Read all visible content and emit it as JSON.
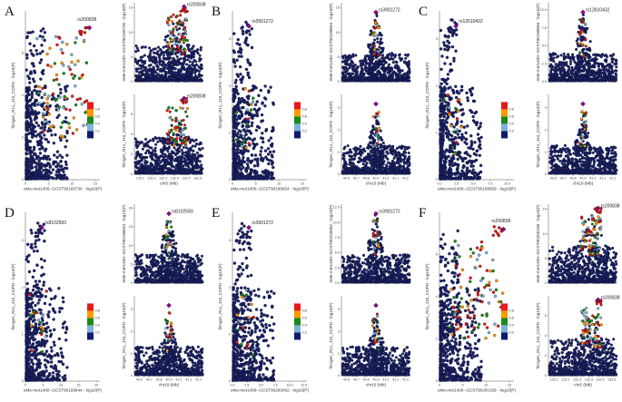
{
  "figure": {
    "legend": {
      "ticks": [
        "0.8",
        "0.6",
        "0.4",
        "0.2"
      ],
      "colors": [
        "#e41a1c",
        "#ff9900",
        "#1a8a1a",
        "#7fb2d8",
        "#101a6e"
      ]
    },
    "colors": {
      "point_default": "#1c2470",
      "point_edge": "#000000",
      "lead": "#8b0a8b",
      "high": "#e41a1c",
      "mid": "#ff9900",
      "green": "#1a8a1a",
      "light": "#7fb2d8"
    }
  },
  "chart_data": [
    {
      "panel": "A",
      "type": "scatter",
      "lead_snp": "rs200838",
      "scatter": {
        "xlabel": "eMe-met1400--GCST90199730 - log10(P)",
        "ylabel": "finngen_R11_J10_COPD - log10(P)",
        "xticks": [
          "0",
          "5",
          "10",
          "15"
        ],
        "yticks": [
          "0",
          "2",
          "4",
          "6"
        ],
        "xlim": [
          0,
          16
        ],
        "ylim": [
          0,
          8
        ]
      },
      "top": {
        "ylabel": "eMe-met1400--GCST90199730 - log10(P)",
        "yticks": [
          "0",
          "5",
          "10",
          "15"
        ],
        "ylim": [
          0,
          16
        ]
      },
      "bottom": {
        "xlabel": "chr5 (Mb)",
        "ylabel": "finngen_R11_J10_COPD - log10(P)",
        "xticks": [
          "132.1",
          "132.2",
          "132.3",
          "132.4",
          "132.5",
          "132.6"
        ],
        "yticks": [
          "0",
          "2",
          "4",
          "6"
        ],
        "ylim": [
          0,
          8
        ]
      }
    },
    {
      "panel": "B",
      "type": "scatter",
      "lead_snp": "rs3901272",
      "scatter": {
        "xlabel": "eMe-met1400--GCST90199654 - log10(P)",
        "ylabel": "finngen_R11_J10_COPD - log10(P)",
        "xticks": [
          "0",
          "5",
          "10",
          "15"
        ],
        "yticks": [
          "0",
          "1",
          "2",
          "3"
        ],
        "xlim": [
          0,
          16
        ],
        "ylim": [
          0,
          3.6
        ]
      },
      "top": {
        "ylabel": "eMe-met1400--GCST90199654 - log10(P)",
        "yticks": [
          "0",
          "5",
          "10",
          "15"
        ],
        "ylim": [
          0,
          16
        ]
      },
      "bottom": {
        "xlabel": "chr19 (Mb)",
        "ylabel": "finngen_R11_J10_COPD - log10(P)",
        "xticks": [
          "40.6",
          "40.7",
          "40.8",
          "40.9",
          "41.0",
          "41.1",
          "41.2"
        ],
        "yticks": [
          "0",
          "1",
          "2",
          "3"
        ],
        "ylim": [
          0,
          3.6
        ]
      }
    },
    {
      "panel": "C",
      "type": "scatter",
      "lead_snp": "rs12610432",
      "scatter": {
        "xlabel": "eMe-met1400--GCST90199659 - log10(P)",
        "ylabel": "finngen_R11_J10_COPD - log10(P)",
        "xticks": [
          "0.0",
          "2.5",
          "5.0",
          "7.5",
          "10.0"
        ],
        "yticks": [
          "0",
          "1",
          "2",
          "3"
        ],
        "xlim": [
          0,
          11
        ],
        "ylim": [
          0,
          3.6
        ]
      },
      "top": {
        "ylabel": "eMe-met1400--GCST90199659 - log10(P)",
        "yticks": [
          "0.0",
          "2.5",
          "5.0",
          "7.5",
          "10.0"
        ],
        "ylim": [
          0,
          11
        ]
      },
      "bottom": {
        "xlabel": "chr19 (Mb)",
        "ylabel": "finngen_R11_J10_COPD - log10(P)",
        "xticks": [
          "40.6",
          "40.7",
          "40.8",
          "40.9",
          "41.0",
          "41.1",
          "41.2"
        ],
        "yticks": [
          "0",
          "1",
          "2",
          "3"
        ],
        "ylim": [
          0,
          3.6
        ]
      }
    },
    {
      "panel": "D",
      "type": "scatter",
      "lead_snp": "rs8102583",
      "scatter": {
        "xlabel": "eMe-met1400--GCST90199644 - log10(P)",
        "ylabel": "finngen_R11_J10_COPD - log10(P)",
        "xticks": [
          "0",
          "5",
          "10",
          "15",
          "20"
        ],
        "yticks": [
          "0",
          "1",
          "2",
          "3"
        ],
        "xlim": [
          0,
          21
        ],
        "ylim": [
          0,
          3.6
        ]
      },
      "top": {
        "ylabel": "eMe-met1400--GCST90199644 - log10(P)",
        "yticks": [
          "0",
          "5",
          "10",
          "15",
          "20"
        ],
        "ylim": [
          0,
          21
        ]
      },
      "bottom": {
        "xlabel": "chr19 (Mb)",
        "ylabel": "finngen_R11_J10_COPD - log10(P)",
        "xticks": [
          "40.6",
          "40.7",
          "40.8",
          "40.9",
          "41.0",
          "41.1",
          "41.2"
        ],
        "yticks": [
          "0",
          "1",
          "2",
          "3"
        ],
        "ylim": [
          0,
          3.6
        ]
      }
    },
    {
      "panel": "E",
      "type": "scatter",
      "lead_snp": "rs3901272",
      "scatter": {
        "xlabel": "eMe-met1400--GCST90200062 - log10(P)",
        "ylabel": "finngen_R11_J10_COPD - log10(P)",
        "xticks": [
          "0.0",
          "2.5",
          "5.0",
          "7.5",
          "10.0",
          "12.5"
        ],
        "yticks": [
          "0",
          "1",
          "2",
          "3"
        ],
        "xlim": [
          0,
          13
        ],
        "ylim": [
          0,
          3.6
        ]
      },
      "top": {
        "ylabel": "eMe-met1400--GCST90200062 - log10(P)",
        "yticks": [
          "0.0",
          "2.5",
          "5.0",
          "7.5",
          "10.0",
          "12.5"
        ],
        "ylim": [
          0,
          13
        ]
      },
      "bottom": {
        "xlabel": "chr19 (Mb)",
        "ylabel": "finngen_R11_J10_COPD - log10(P)",
        "xticks": [
          "40.6",
          "40.7",
          "40.8",
          "40.9",
          "41.0",
          "41.1",
          "41.2"
        ],
        "yticks": [
          "0",
          "1",
          "2",
          "3"
        ],
        "ylim": [
          0,
          3.6
        ]
      }
    },
    {
      "panel": "F",
      "type": "scatter",
      "lead_snp": "rs200838",
      "scatter": {
        "xlabel": "eMe-met1400--GCST90200158 - log10(P)",
        "ylabel": "finngen_R11_J10_COPD - log10(P)",
        "xticks": [
          "0",
          "5",
          "10",
          "15"
        ],
        "yticks": [
          "0",
          "2",
          "4",
          "6"
        ],
        "xlim": [
          0,
          16
        ],
        "ylim": [
          0,
          8
        ]
      },
      "top": {
        "ylabel": "eMe-met1400--GCST90200158 - log10(P)",
        "yticks": [
          "0",
          "5",
          "10",
          "15"
        ],
        "ylim": [
          0,
          16
        ]
      },
      "bottom": {
        "xlabel": "chr5 (Mb)",
        "ylabel": "finngen_R11_J10_COPD - log10(P)",
        "xticks": [
          "132.1",
          "132.2",
          "132.3",
          "132.4",
          "132.5",
          "132.6"
        ],
        "yticks": [
          "0",
          "2",
          "4",
          "6"
        ],
        "ylim": [
          0,
          8
        ]
      }
    }
  ]
}
